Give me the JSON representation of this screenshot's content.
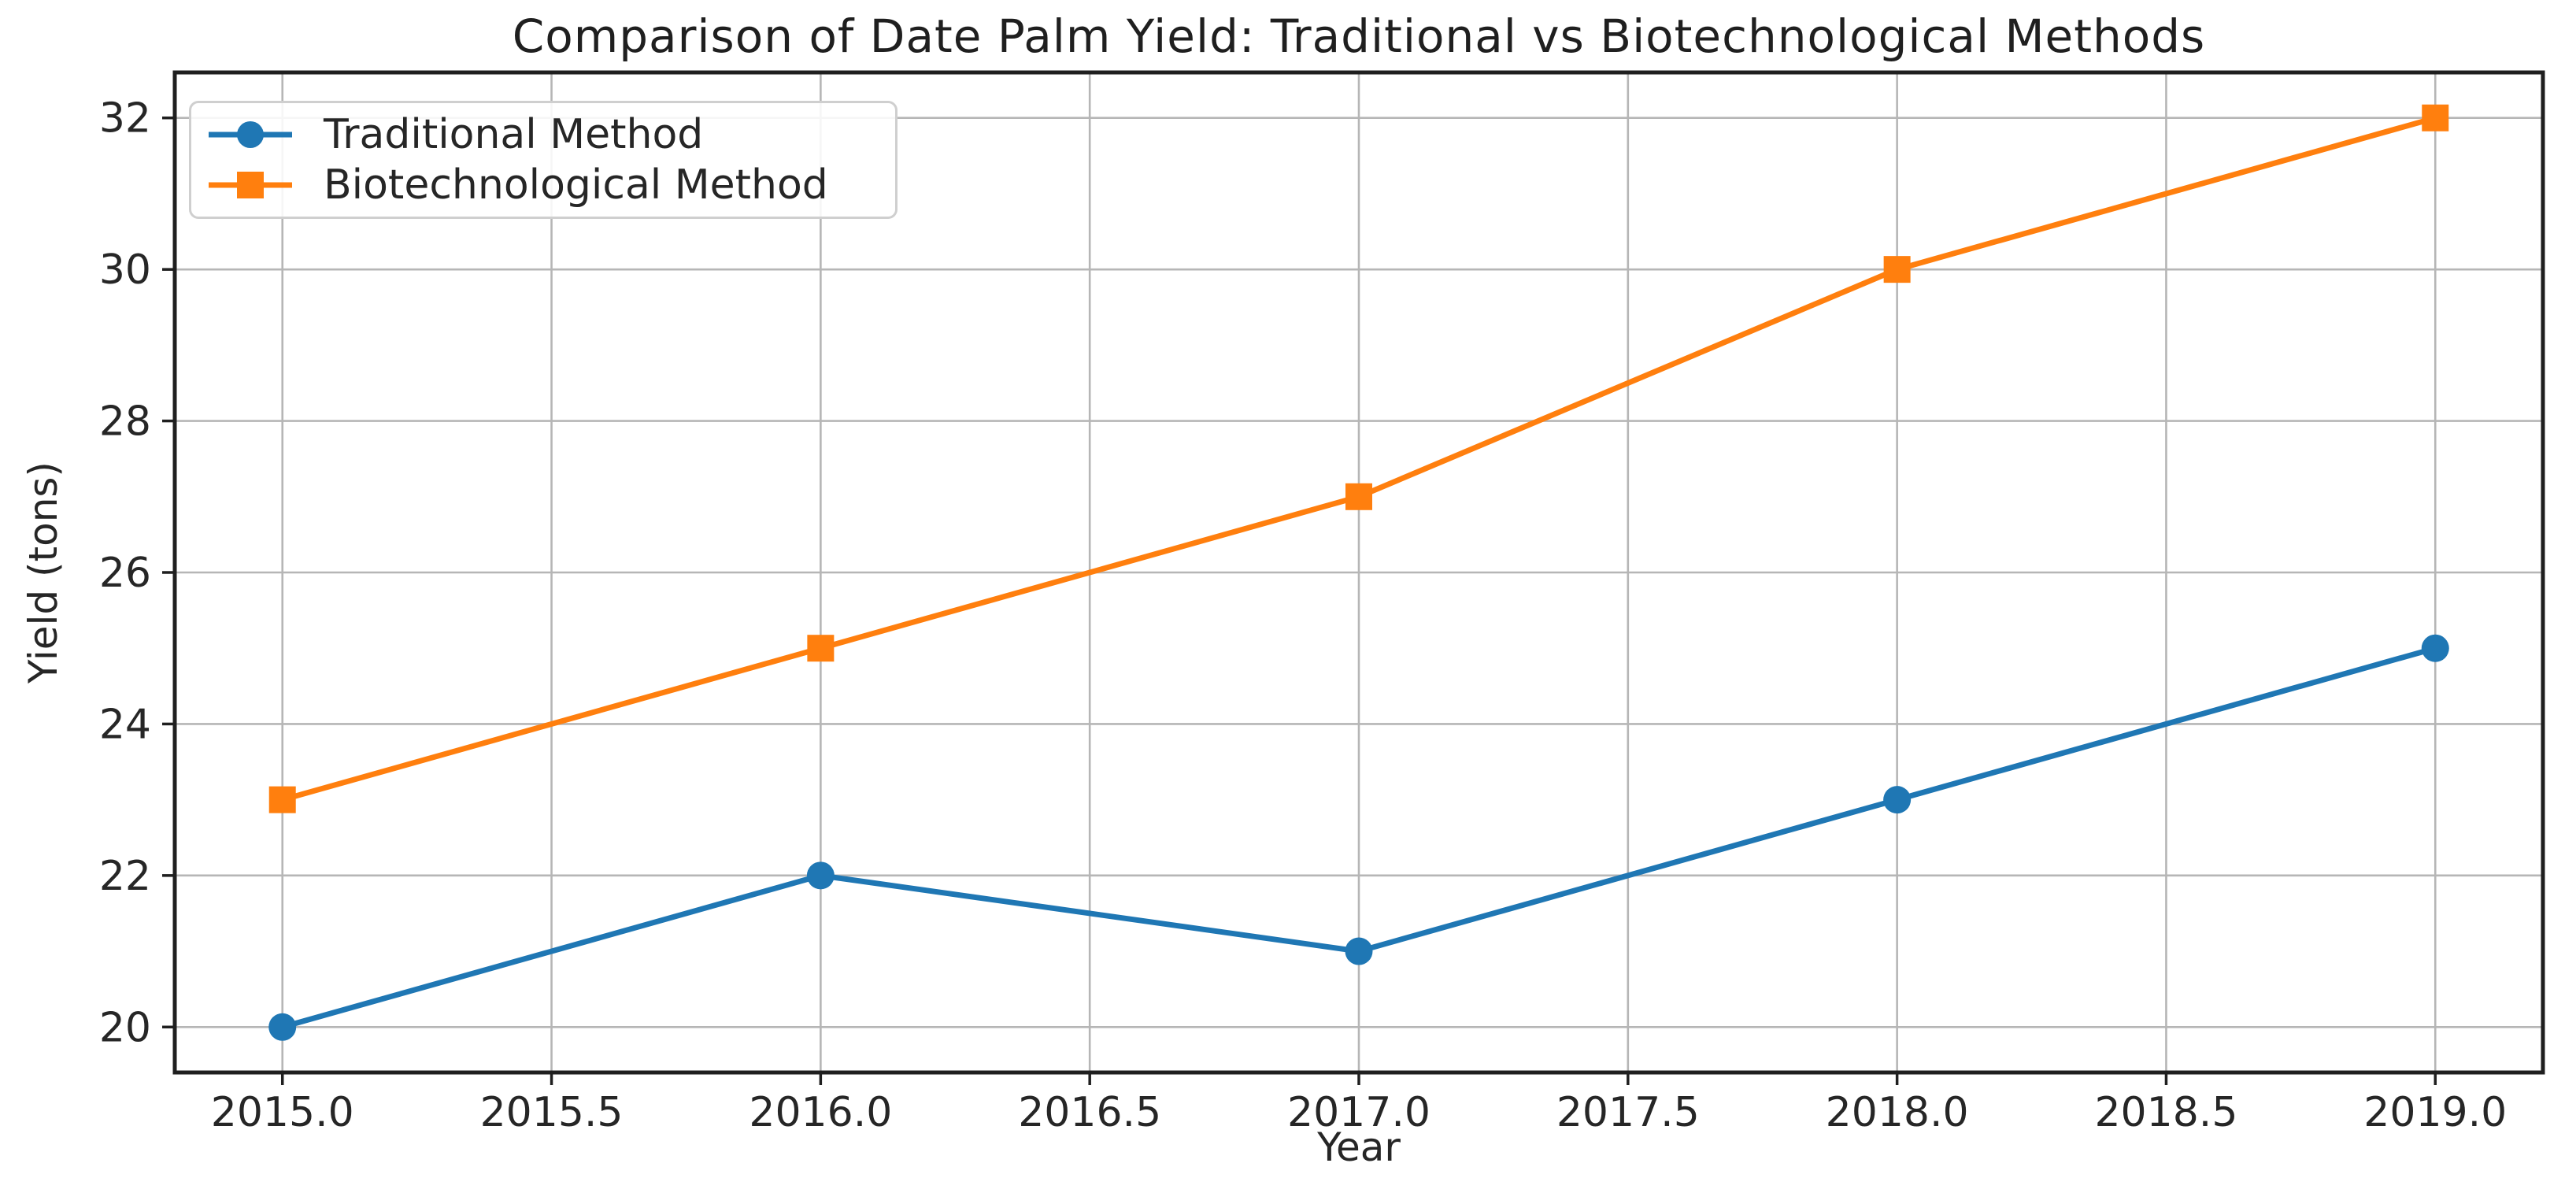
{
  "chart_data": {
    "type": "line",
    "title": "Comparison of Date Palm Yield: Traditional vs Biotechnological Methods",
    "xlabel": "Year",
    "ylabel": "Yield (tons)",
    "x": [
      2015,
      2016,
      2017,
      2018,
      2019
    ],
    "series": [
      {
        "name": "Traditional Method",
        "values": [
          20,
          22,
          21,
          23,
          25
        ],
        "color": "#1f77b4",
        "marker": "circle"
      },
      {
        "name": "Biotechnological Method",
        "values": [
          23,
          25,
          27,
          30,
          32
        ],
        "color": "#ff7f0e",
        "marker": "square"
      }
    ],
    "xticks": [
      2015.0,
      2015.5,
      2016.0,
      2016.5,
      2017.0,
      2017.5,
      2018.0,
      2018.5,
      2019.0
    ],
    "xtick_labels": [
      "2015.0",
      "2015.5",
      "2016.0",
      "2016.5",
      "2017.0",
      "2017.5",
      "2018.0",
      "2018.5",
      "2019.0"
    ],
    "yticks": [
      20,
      22,
      24,
      26,
      28,
      30,
      32
    ],
    "ytick_labels": [
      "20",
      "22",
      "24",
      "26",
      "28",
      "30",
      "32"
    ],
    "xlim": [
      2014.8,
      2019.2
    ],
    "ylim": [
      19.4,
      32.6
    ],
    "grid": true,
    "legend_position": "upper-left",
    "colors": {
      "background": "#ffffff",
      "grid": "#b6b6b6",
      "spine": "#1f1f1f",
      "text": "#262626",
      "legend_border": "#cfcfcf"
    }
  }
}
